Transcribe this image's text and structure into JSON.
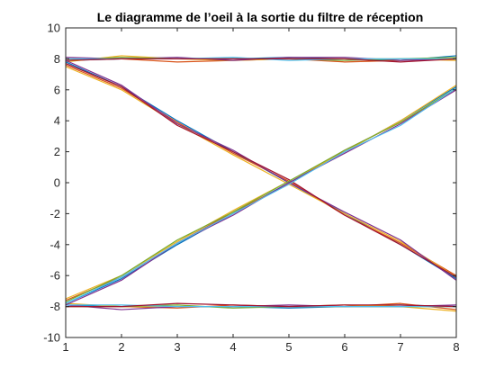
{
  "chart_data": {
    "type": "line",
    "title": "Le diagramme de l’oeil à la sortie du filtre de réception",
    "xlabel": "",
    "ylabel": "",
    "x": [
      1,
      2,
      3,
      4,
      5,
      6,
      7,
      8
    ],
    "xlim": [
      1,
      8
    ],
    "ylim": [
      -10,
      10
    ],
    "xticks": [
      1,
      2,
      3,
      4,
      5,
      6,
      7,
      8
    ],
    "yticks": [
      -10,
      -8,
      -6,
      -4,
      -2,
      0,
      2,
      4,
      6,
      8,
      10
    ],
    "grid": false,
    "legend": "none",
    "series": [
      {
        "color": "#0072BD",
        "values": [
          7.9,
          8.0,
          8.0,
          8.0,
          8.1,
          8.0,
          7.9,
          8.2
        ]
      },
      {
        "color": "#D95319",
        "values": [
          8.0,
          8.0,
          7.8,
          7.9,
          8.0,
          7.8,
          7.9,
          8.0
        ]
      },
      {
        "color": "#EDB120",
        "values": [
          7.8,
          8.2,
          8.0,
          7.9,
          8.0,
          8.0,
          8.0,
          7.9
        ]
      },
      {
        "color": "#7E2F8E",
        "values": [
          8.1,
          8.0,
          8.1,
          7.9,
          8.1,
          8.1,
          7.9,
          8.0
        ]
      },
      {
        "color": "#77AC30",
        "values": [
          7.9,
          8.1,
          8.0,
          8.0,
          8.0,
          7.9,
          8.0,
          8.1
        ]
      },
      {
        "color": "#4DBEEE",
        "values": [
          8.0,
          8.0,
          8.0,
          8.1,
          7.9,
          8.0,
          8.0,
          8.0
        ]
      },
      {
        "color": "#A2142F",
        "values": [
          7.9,
          8.0,
          8.0,
          8.0,
          8.0,
          8.0,
          7.8,
          8.0
        ]
      },
      {
        "color": "#0072BD",
        "values": [
          -7.9,
          -8.0,
          -8.0,
          -8.0,
          -8.1,
          -8.0,
          -7.9,
          -8.0
        ]
      },
      {
        "color": "#D95319",
        "values": [
          -8.0,
          -8.0,
          -8.1,
          -7.9,
          -8.0,
          -8.0,
          -7.8,
          -8.2
        ]
      },
      {
        "color": "#EDB120",
        "values": [
          -7.8,
          -8.0,
          -8.0,
          -8.0,
          -8.0,
          -7.9,
          -8.0,
          -8.3
        ]
      },
      {
        "color": "#7E2F8E",
        "values": [
          -7.9,
          -8.2,
          -8.0,
          -8.0,
          -7.9,
          -8.0,
          -8.0,
          -7.9
        ]
      },
      {
        "color": "#77AC30",
        "values": [
          -8.0,
          -8.0,
          -7.9,
          -8.1,
          -8.0,
          -8.0,
          -8.0,
          -8.0
        ]
      },
      {
        "color": "#4DBEEE",
        "values": [
          -7.9,
          -7.9,
          -8.0,
          -8.0,
          -8.0,
          -8.0,
          -8.0,
          -8.0
        ]
      },
      {
        "color": "#A2142F",
        "values": [
          -8.0,
          -8.0,
          -7.8,
          -7.9,
          -8.0,
          -7.9,
          -7.9,
          -8.0
        ]
      },
      {
        "color": "#0072BD",
        "values": [
          7.8,
          6.2,
          4.0,
          2.0,
          0.0,
          -2.0,
          -4.0,
          -6.2
        ]
      },
      {
        "color": "#D95319",
        "values": [
          7.6,
          6.1,
          3.9,
          1.9,
          0.1,
          -2.1,
          -3.9,
          -6.0
        ]
      },
      {
        "color": "#EDB120",
        "values": [
          7.5,
          6.0,
          3.8,
          1.8,
          -0.1,
          -2.0,
          -3.8,
          -6.1
        ]
      },
      {
        "color": "#7E2F8E",
        "values": [
          7.9,
          6.3,
          3.8,
          2.1,
          0.0,
          -1.9,
          -3.7,
          -6.3
        ]
      },
      {
        "color": "#A2142F",
        "values": [
          7.7,
          6.2,
          3.7,
          2.0,
          0.2,
          -2.1,
          -4.0,
          -6.1
        ]
      },
      {
        "color": "#0072BD",
        "values": [
          -7.8,
          -6.2,
          -4.0,
          -2.0,
          0.0,
          2.0,
          4.0,
          6.2
        ]
      },
      {
        "color": "#D95319",
        "values": [
          -7.6,
          -6.1,
          -3.9,
          -1.9,
          -0.1,
          2.1,
          3.9,
          6.0
        ]
      },
      {
        "color": "#EDB120",
        "values": [
          -7.5,
          -6.0,
          -3.8,
          -1.8,
          0.1,
          2.0,
          4.0,
          6.3
        ]
      },
      {
        "color": "#7E2F8E",
        "values": [
          -7.9,
          -6.3,
          -3.9,
          -2.1,
          0.0,
          1.9,
          3.8,
          6.0
        ]
      },
      {
        "color": "#77AC30",
        "values": [
          -7.7,
          -6.0,
          -3.7,
          -1.9,
          0.1,
          2.1,
          3.9,
          6.1
        ]
      },
      {
        "color": "#4DBEEE",
        "values": [
          -7.8,
          -6.1,
          -3.9,
          -2.0,
          -0.1,
          2.0,
          3.7,
          6.1
        ]
      }
    ]
  }
}
